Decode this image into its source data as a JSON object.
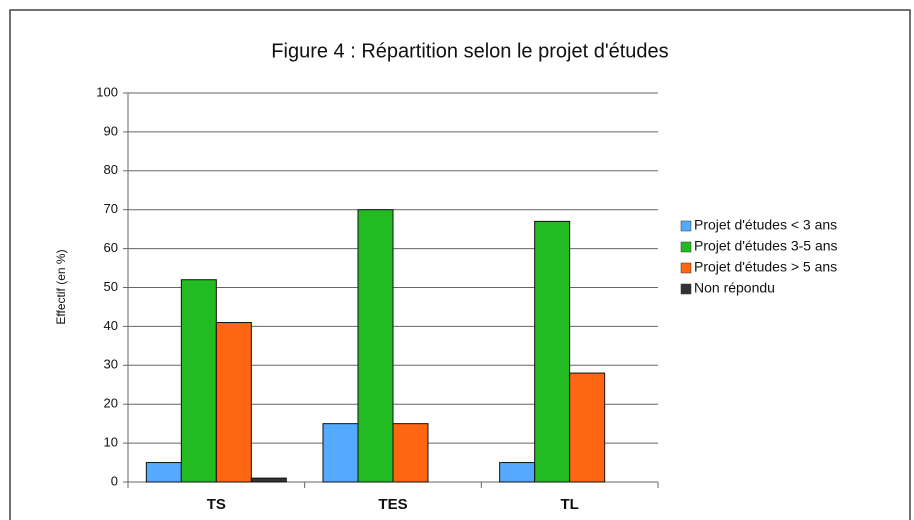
{
  "chart_data": {
    "type": "bar",
    "title": "Figure 4 : Répartition selon le projet d'études",
    "y_label": "Effectif (en %)",
    "categories": [
      "TS",
      "TES",
      "TL"
    ],
    "series": [
      {
        "name": "Projet d'études < 3 ans",
        "color": "#55aaff",
        "values": [
          5,
          15,
          5
        ]
      },
      {
        "name": "Projet d'études 3-5 ans",
        "color": "#22bb22",
        "values": [
          52,
          70,
          67
        ]
      },
      {
        "name": "Projet d'études > 5 ans",
        "color": "#ff6611",
        "values": [
          41,
          15,
          28
        ]
      },
      {
        "name": "Non répondu",
        "color": "#333333",
        "values": [
          1,
          0,
          0
        ]
      }
    ],
    "ylim": [
      0,
      100
    ],
    "yticks": [
      0,
      10,
      20,
      30,
      40,
      50,
      60,
      70,
      80,
      90,
      100
    ],
    "grid": true,
    "legend": "right"
  }
}
